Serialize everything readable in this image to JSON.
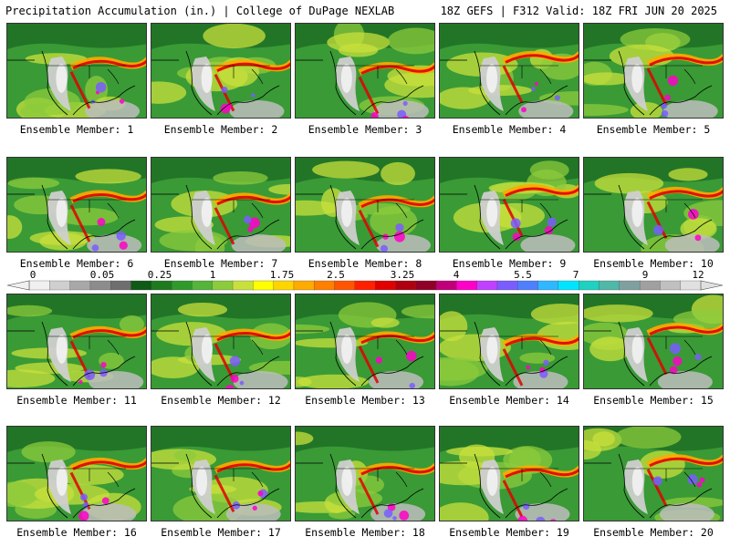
{
  "header": {
    "title": "Precipitation Accumulation (in.) | College of DuPage NEXLAB",
    "valid": "18Z GEFS | F312 Valid: 18Z FRI JUN 20 2025"
  },
  "panels": [
    "Ensemble Member: 1",
    "Ensemble Member: 2",
    "Ensemble Member: 3",
    "Ensemble Member: 4",
    "Ensemble Member: 5",
    "Ensemble Member: 6",
    "Ensemble Member: 7",
    "Ensemble Member: 8",
    "Ensemble Member: 9",
    "Ensemble Member: 10",
    "Ensemble Member: 11",
    "Ensemble Member: 12",
    "Ensemble Member: 13",
    "Ensemble Member: 14",
    "Ensemble Member: 15",
    "Ensemble Member: 16",
    "Ensemble Member: 17",
    "Ensemble Member: 18",
    "Ensemble Member: 19",
    "Ensemble Member: 20"
  ],
  "colorbar": {
    "labels": [
      "0",
      "0.05",
      "0.25",
      "1",
      "1.75",
      "2.5",
      "3.25",
      "4",
      "5.5",
      "7",
      "9",
      "12"
    ],
    "colors": [
      "#f0f0f0",
      "#cfcfcf",
      "#a8a8a8",
      "#8c8c8c",
      "#6e6e6e",
      "#0f5a16",
      "#1f7a1f",
      "#2f9a2a",
      "#55b43a",
      "#8ccb3c",
      "#c8e03c",
      "#ffff00",
      "#ffd500",
      "#ffaa00",
      "#ff7f00",
      "#ff5500",
      "#ff2000",
      "#e00000",
      "#b00010",
      "#900028",
      "#c0007a",
      "#ff00c8",
      "#c040ff",
      "#7a5cff",
      "#4f7fff",
      "#2fb8ff",
      "#00e5ff",
      "#20d0c0",
      "#50b8a8",
      "#80a0a0",
      "#a0a0a0",
      "#c0c0c0",
      "#e0e0e0"
    ]
  }
}
